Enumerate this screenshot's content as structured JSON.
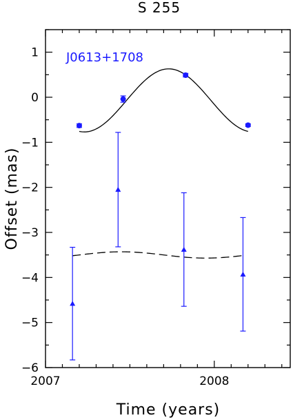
{
  "chart_data": {
    "type": "scatter",
    "title": "S 255",
    "xlabel": "Time (years)",
    "ylabel": "Offset (mas)",
    "xlim": [
      2007.0,
      2008.45
    ],
    "ylim": [
      -6.0,
      1.5
    ],
    "x_ticks": [
      2007,
      2008
    ],
    "y_ticks": [
      1,
      0,
      -1,
      -2,
      -3,
      -4,
      -5,
      -6
    ],
    "annotation": "J0613+1708",
    "colors": {
      "points": "#1a1aff",
      "fit": "#000000"
    },
    "series": [
      {
        "marker": "circle",
        "x": [
          2007.2,
          2007.46,
          2007.83,
          2008.2
        ],
        "y": [
          -0.63,
          -0.04,
          0.49,
          -0.62
        ],
        "yerr": [
          0.04,
          0.07,
          0.04,
          0.03
        ],
        "fit": {
          "line": "solid",
          "mean": -0.07,
          "amplitude": 0.7,
          "peak_at": 2007.73,
          "period": 1.0
        }
      },
      {
        "marker": "triangle",
        "x": [
          2007.16,
          2007.43,
          2007.82,
          2008.17
        ],
        "y": [
          -4.58,
          -2.05,
          -3.38,
          -3.93
        ],
        "yerr": [
          1.25,
          1.27,
          1.26,
          1.26
        ],
        "fit": {
          "line": "dashed",
          "mean": -3.5,
          "amplitude": 0.07,
          "peak_at": 2007.45,
          "period": 1.0
        }
      }
    ]
  }
}
